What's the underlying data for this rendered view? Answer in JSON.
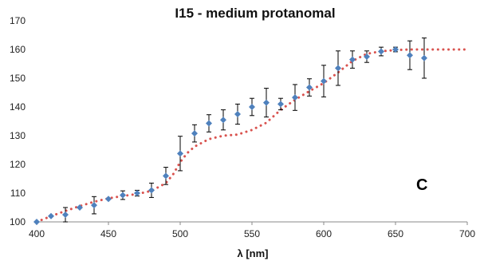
{
  "chart_data": {
    "type": "scatter",
    "title": "I15 - medium protanomal",
    "xlabel": "λ [nm]",
    "ylabel": "",
    "xlim": [
      400,
      700
    ],
    "ylim": [
      100,
      170
    ],
    "x_ticks": [
      400,
      450,
      500,
      550,
      600,
      650,
      700
    ],
    "y_ticks": [
      100,
      110,
      120,
      130,
      140,
      150,
      160,
      170
    ],
    "grid": false,
    "panel_label": "C",
    "colors": {
      "measured": "#4f81bd",
      "model": "#d9534f",
      "error_bar": "#000000",
      "axis": "#888888"
    },
    "series": [
      {
        "kind": "points-with-error",
        "x": [
          400,
          410,
          420,
          430,
          440,
          450,
          460,
          470,
          480,
          490,
          500,
          510,
          520,
          530,
          540,
          550,
          560,
          570,
          580,
          590,
          600,
          610,
          620,
          630,
          640,
          650,
          660,
          670
        ],
        "y": [
          100,
          102,
          102.5,
          105,
          105.8,
          108,
          109.3,
          110,
          111,
          116,
          123.8,
          130.8,
          134.3,
          135.5,
          137.5,
          140,
          141.5,
          141,
          143.3,
          146.8,
          149,
          153.5,
          156.5,
          157.5,
          159.3,
          160,
          158,
          157
        ],
        "err": [
          0,
          0,
          2.5,
          0,
          3,
          0,
          1.5,
          1,
          2.5,
          3,
          6,
          3,
          3,
          3.5,
          3.5,
          3,
          5,
          2,
          4.5,
          3,
          5.5,
          6,
          3,
          2,
          1.5,
          0.8,
          5,
          7
        ]
      },
      {
        "kind": "dotted-curve",
        "x": [
          400,
          410,
          420,
          430,
          440,
          450,
          460,
          470,
          480,
          490,
          495,
          500,
          505,
          510,
          520,
          530,
          540,
          550,
          560,
          570,
          580,
          590,
          600,
          610,
          620,
          630,
          640,
          650,
          660,
          670,
          680,
          690,
          700
        ],
        "y": [
          100,
          102,
          103.8,
          105.5,
          107,
          108.2,
          109,
          109.7,
          110.8,
          113.5,
          116.5,
          120.8,
          124,
          126.2,
          128.8,
          130,
          130.4,
          132,
          134.5,
          139,
          142.5,
          145.5,
          148.3,
          152,
          156,
          158.5,
          159.4,
          159.8,
          160,
          160,
          160,
          160,
          160
        ]
      }
    ]
  }
}
